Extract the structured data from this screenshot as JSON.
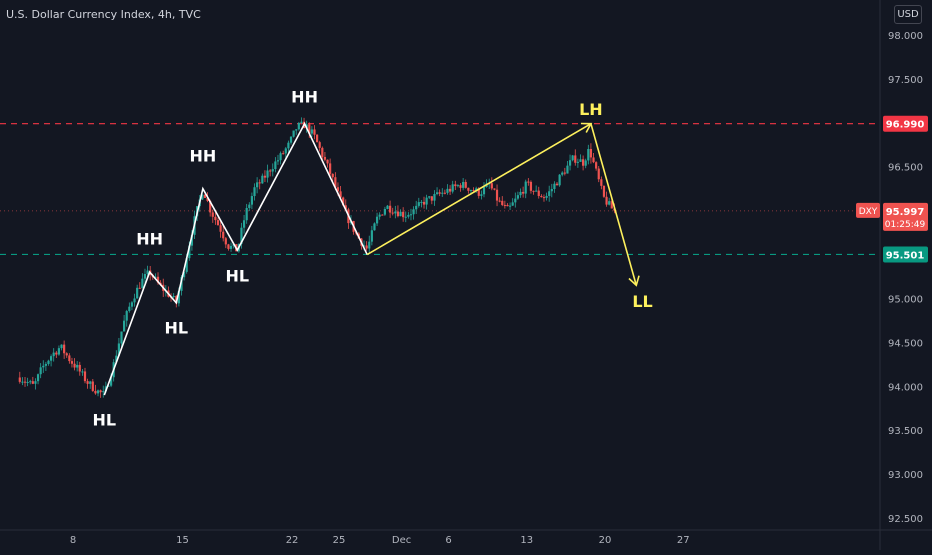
{
  "header": {
    "title": "U.S. Dollar Currency Index, 4h, TVC",
    "currency": "USD"
  },
  "colors": {
    "background": "#131722",
    "axis_text": "#b2b5be",
    "candle_up": "#26a69a",
    "candle_down": "#ef5350",
    "resistance": "#f23645",
    "support": "#089981",
    "structure_line": "#ffffff",
    "projection_line": "#fdf05d"
  },
  "chart_data": {
    "type": "candlestick",
    "symbol_badge": "DXY",
    "last_price": "95.997",
    "countdown": "01:25:49",
    "ylim": [
      92.45,
      98.25
    ],
    "y_ticks": [
      "98.000",
      "97.500",
      "97.000",
      "96.500",
      "96.000",
      "95.500",
      "95.000",
      "94.500",
      "94.000",
      "93.500",
      "93.000",
      "92.500"
    ],
    "x_ticks": [
      {
        "label": "8",
        "day": 8
      },
      {
        "label": "15",
        "day": 15
      },
      {
        "label": "22",
        "day": 22
      },
      {
        "label": "25",
        "day": 25
      },
      {
        "label": "Dec",
        "day": 29
      },
      {
        "label": "6",
        "day": 32
      },
      {
        "label": "13",
        "day": 37
      },
      {
        "label": "20",
        "day": 42
      },
      {
        "label": "27",
        "day": 47
      }
    ],
    "xlim": [
      4.5,
      50.5
    ],
    "horizontal_levels": [
      {
        "name": "resistance",
        "price": 96.99,
        "label": "96.990"
      },
      {
        "name": "support",
        "price": 95.501,
        "label": "95.501"
      }
    ],
    "close_line": 95.997,
    "price_path": [
      {
        "day": 4.6,
        "price": 94.1
      },
      {
        "day": 5.5,
        "price": 94.0
      },
      {
        "day": 6.0,
        "price": 94.2
      },
      {
        "day": 6.6,
        "price": 94.35
      },
      {
        "day": 7.2,
        "price": 94.45
      },
      {
        "day": 7.8,
        "price": 94.3
      },
      {
        "day": 8.3,
        "price": 94.2
      },
      {
        "day": 8.9,
        "price": 94.05
      },
      {
        "day": 9.5,
        "price": 93.95
      },
      {
        "day": 10.0,
        "price": 93.9
      },
      {
        "day": 10.6,
        "price": 94.25
      },
      {
        "day": 11.2,
        "price": 94.7
      },
      {
        "day": 11.8,
        "price": 95.0
      },
      {
        "day": 12.4,
        "price": 95.2
      },
      {
        "day": 12.9,
        "price": 95.3
      },
      {
        "day": 13.5,
        "price": 95.15
      },
      {
        "day": 14.1,
        "price": 95.05
      },
      {
        "day": 14.6,
        "price": 94.95
      },
      {
        "day": 15.1,
        "price": 95.35
      },
      {
        "day": 15.7,
        "price": 95.85
      },
      {
        "day": 16.3,
        "price": 96.25
      },
      {
        "day": 16.8,
        "price": 96.0
      },
      {
        "day": 17.4,
        "price": 95.8
      },
      {
        "day": 17.9,
        "price": 95.6
      },
      {
        "day": 18.5,
        "price": 95.55
      },
      {
        "day": 19.0,
        "price": 95.95
      },
      {
        "day": 19.6,
        "price": 96.25
      },
      {
        "day": 20.1,
        "price": 96.35
      },
      {
        "day": 20.7,
        "price": 96.5
      },
      {
        "day": 21.2,
        "price": 96.6
      },
      {
        "day": 21.8,
        "price": 96.75
      },
      {
        "day": 22.3,
        "price": 96.95
      },
      {
        "day": 22.8,
        "price": 96.98
      },
      {
        "day": 23.4,
        "price": 96.85
      },
      {
        "day": 23.9,
        "price": 96.65
      },
      {
        "day": 24.5,
        "price": 96.4
      },
      {
        "day": 25.0,
        "price": 96.15
      },
      {
        "day": 25.6,
        "price": 95.9
      },
      {
        "day": 26.2,
        "price": 95.7
      },
      {
        "day": 26.8,
        "price": 95.56
      },
      {
        "day": 27.4,
        "price": 95.9
      },
      {
        "day": 28.0,
        "price": 96.05
      },
      {
        "day": 28.6,
        "price": 96.0
      },
      {
        "day": 29.2,
        "price": 95.95
      },
      {
        "day": 29.8,
        "price": 96.0
      },
      {
        "day": 30.4,
        "price": 96.1
      },
      {
        "day": 31.0,
        "price": 96.15
      },
      {
        "day": 31.6,
        "price": 96.2
      },
      {
        "day": 32.2,
        "price": 96.25
      },
      {
        "day": 32.8,
        "price": 96.3
      },
      {
        "day": 33.4,
        "price": 96.25
      },
      {
        "day": 34.0,
        "price": 96.2
      },
      {
        "day": 34.6,
        "price": 96.3
      },
      {
        "day": 35.2,
        "price": 96.1
      },
      {
        "day": 35.8,
        "price": 96.0
      },
      {
        "day": 36.4,
        "price": 96.15
      },
      {
        "day": 37.0,
        "price": 96.3
      },
      {
        "day": 37.6,
        "price": 96.2
      },
      {
        "day": 38.2,
        "price": 96.15
      },
      {
        "day": 38.8,
        "price": 96.3
      },
      {
        "day": 39.4,
        "price": 96.45
      },
      {
        "day": 40.0,
        "price": 96.6
      },
      {
        "day": 40.6,
        "price": 96.55
      },
      {
        "day": 41.0,
        "price": 96.7
      },
      {
        "day": 41.5,
        "price": 96.4
      },
      {
        "day": 41.9,
        "price": 96.15
      },
      {
        "day": 42.3,
        "price": 96.05
      },
      {
        "day": 42.6,
        "price": 95.997
      }
    ],
    "structure_lines": [
      {
        "name": "uptrend-structure",
        "points": [
          {
            "day": 10.0,
            "price": 93.9
          },
          {
            "day": 12.9,
            "price": 95.3
          },
          {
            "day": 14.6,
            "price": 94.95
          },
          {
            "day": 16.3,
            "price": 96.25
          },
          {
            "day": 18.5,
            "price": 95.55
          },
          {
            "day": 22.8,
            "price": 96.99
          },
          {
            "day": 26.8,
            "price": 95.5
          }
        ]
      }
    ],
    "projection_lines": [
      {
        "name": "lower-high-projection",
        "points": [
          {
            "day": 26.8,
            "price": 95.5
          },
          {
            "day": 41.1,
            "price": 96.99
          },
          {
            "day": 44.0,
            "price": 95.15
          }
        ]
      }
    ],
    "annotations": [
      {
        "label": "HL",
        "day": 10.0,
        "price": 93.62,
        "color": "white"
      },
      {
        "label": "HH",
        "day": 12.9,
        "price": 95.68,
        "color": "white"
      },
      {
        "label": "HL",
        "day": 14.6,
        "price": 94.67,
        "color": "white"
      },
      {
        "label": "HH",
        "day": 16.3,
        "price": 96.63,
        "color": "white"
      },
      {
        "label": "HL",
        "day": 18.5,
        "price": 95.26,
        "color": "white"
      },
      {
        "label": "HH",
        "day": 22.8,
        "price": 97.3,
        "color": "white"
      },
      {
        "label": "LH",
        "day": 41.1,
        "price": 97.16,
        "color": "yellow"
      },
      {
        "label": "LL",
        "day": 44.4,
        "price": 94.97,
        "color": "yellow"
      }
    ]
  }
}
